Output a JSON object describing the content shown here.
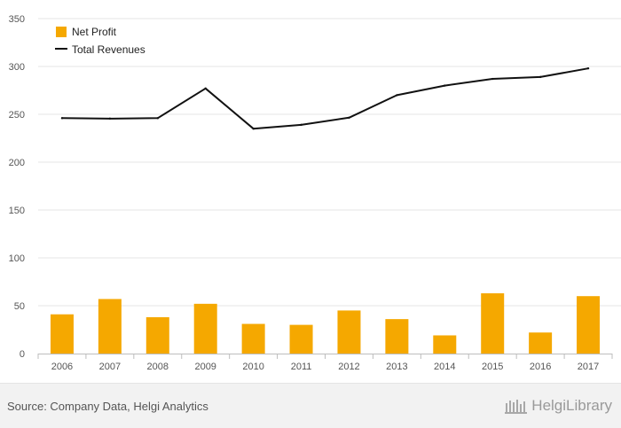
{
  "chart_data": {
    "type": "bar+line",
    "categories": [
      "2006",
      "2007",
      "2008",
      "2009",
      "2010",
      "2011",
      "2012",
      "2013",
      "2014",
      "2015",
      "2016",
      "2017"
    ],
    "series": [
      {
        "name": "Net Profit",
        "type": "bar",
        "color": "#f5a800",
        "values": [
          41,
          57,
          38,
          52,
          31,
          30,
          45,
          36,
          19,
          63,
          22,
          60
        ]
      },
      {
        "name": "Total Revenues",
        "type": "line",
        "color": "#111111",
        "values": [
          246,
          245.5,
          246,
          277,
          235,
          239,
          246.5,
          270,
          280,
          287,
          289,
          298
        ]
      }
    ],
    "yticks": [
      0,
      50,
      100,
      150,
      200,
      250,
      300,
      350
    ],
    "ylim": [
      0,
      350
    ],
    "grid": true,
    "legend_position": "top-left"
  },
  "footer": {
    "source": "Source: Company Data, Helgi Analytics",
    "brand": "HelgiLibrary"
  },
  "colors": {
    "grid": "#e6e6e6",
    "axis_text": "#555555",
    "footer_bg": "#f2f2f2"
  }
}
